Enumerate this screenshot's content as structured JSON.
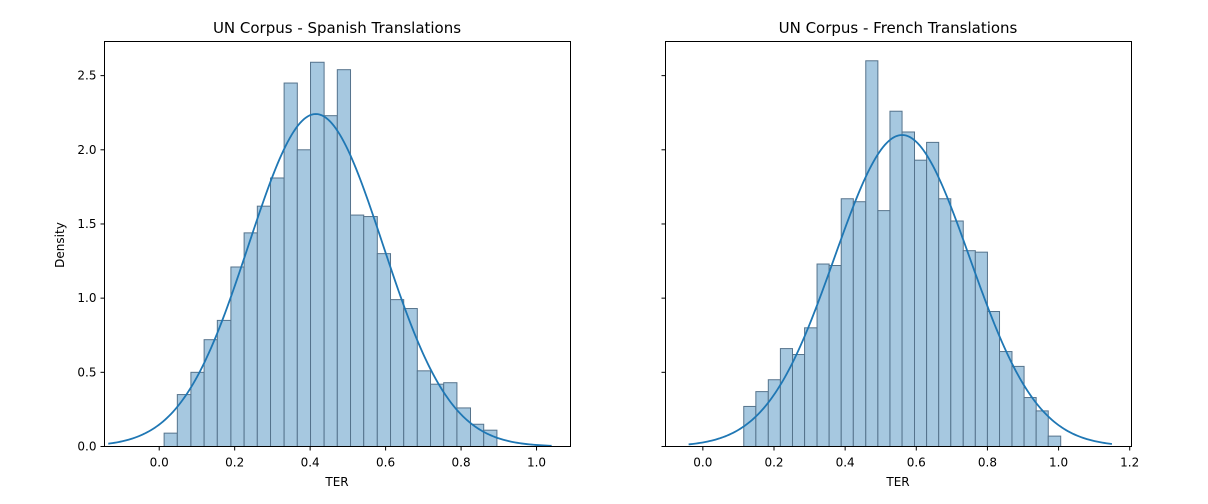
{
  "chart_data": [
    {
      "type": "bar",
      "title": "UN Corpus - Spanish Translations",
      "xlabel": "TER",
      "ylabel": "Density",
      "xlim": [
        -0.145,
        1.09
      ],
      "ylim": [
        0,
        2.73
      ],
      "xticks": [
        0.0,
        0.2,
        0.4,
        0.6,
        0.8,
        1.0
      ],
      "xtick_labels": [
        "0.0",
        "0.2",
        "0.4",
        "0.6",
        "0.8",
        "1.0"
      ],
      "yticks": [
        0.0,
        0.5,
        1.0,
        1.5,
        2.0,
        2.5
      ],
      "ytick_labels": [
        "0.0",
        "0.5",
        "1.0",
        "1.5",
        "2.0",
        "2.5"
      ],
      "show_ytick_labels": true,
      "bin_edges": [
        0.013,
        0.048,
        0.084,
        0.119,
        0.154,
        0.19,
        0.225,
        0.26,
        0.295,
        0.331,
        0.366,
        0.401,
        0.437,
        0.472,
        0.507,
        0.542,
        0.578,
        0.613,
        0.648,
        0.684,
        0.719,
        0.754,
        0.789,
        0.825,
        0.86,
        0.895
      ],
      "densities": [
        0.09,
        0.35,
        0.5,
        0.72,
        0.85,
        1.21,
        1.44,
        1.62,
        1.81,
        2.45,
        2.0,
        2.59,
        2.23,
        2.54,
        1.56,
        1.55,
        1.3,
        0.99,
        0.93,
        0.51,
        0.42,
        0.43,
        0.26,
        0.15,
        0.11
      ],
      "kde": {
        "mean": 0.415,
        "sd": 0.178,
        "x_range": [
          -0.135,
          1.04
        ]
      },
      "colors": {
        "bar_fill": "#a6c8e0",
        "bar_edge": "#55738c",
        "kde_line": "#1f77b4"
      }
    },
    {
      "type": "bar",
      "title": "UN Corpus - French Translations",
      "xlabel": "TER",
      "ylabel": "",
      "xlim": [
        -0.105,
        1.205
      ],
      "ylim": [
        0,
        2.73
      ],
      "xticks": [
        0.0,
        0.2,
        0.4,
        0.6,
        0.8,
        1.0,
        1.2
      ],
      "xtick_labels": [
        "0.0",
        "0.2",
        "0.4",
        "0.6",
        "0.8",
        "1.0",
        "1.2"
      ],
      "yticks": [
        0.0,
        0.5,
        1.0,
        1.5,
        2.0,
        2.5
      ],
      "ytick_labels": [],
      "show_ytick_labels": false,
      "bin_edges": [
        0.115,
        0.149,
        0.184,
        0.218,
        0.252,
        0.286,
        0.321,
        0.355,
        0.389,
        0.423,
        0.458,
        0.492,
        0.526,
        0.56,
        0.595,
        0.629,
        0.663,
        0.697,
        0.732,
        0.766,
        0.8,
        0.834,
        0.869,
        0.903,
        0.937,
        0.971,
        1.006
      ],
      "densities": [
        0.27,
        0.37,
        0.45,
        0.66,
        0.62,
        0.8,
        1.23,
        1.22,
        1.67,
        1.65,
        2.6,
        1.59,
        2.26,
        2.12,
        1.93,
        2.05,
        1.67,
        1.52,
        1.32,
        1.31,
        0.91,
        0.64,
        0.54,
        0.33,
        0.24,
        0.07
      ],
      "kde": {
        "mean": 0.56,
        "sd": 0.19,
        "x_range": [
          -0.04,
          1.15
        ]
      },
      "colors": {
        "bar_fill": "#a6c8e0",
        "bar_edge": "#55738c",
        "kde_line": "#1f77b4"
      }
    }
  ]
}
